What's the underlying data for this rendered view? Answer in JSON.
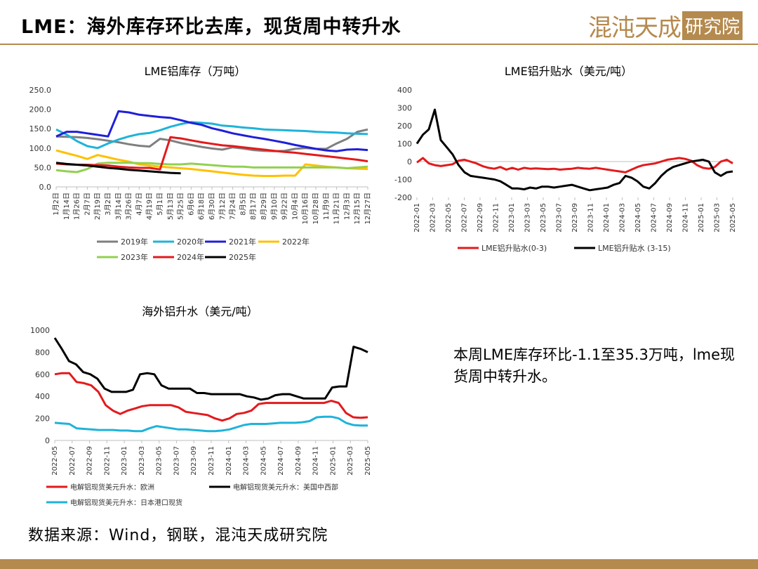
{
  "page": {
    "title": "LME：海外库存环比去库，现货周中转升水",
    "logo_main": "混沌天成",
    "logo_sub": "研究院",
    "note": "本周LME库存环比-1.1至35.3万吨，lme现货周中转升水。",
    "source": "数据来源：Wind，钢联，混沌天成研究院",
    "colors": {
      "gold": "#b58a4e"
    }
  },
  "chart_data": [
    {
      "type": "line",
      "title": "LME铝库存（万吨）",
      "ylim": [
        0,
        250
      ],
      "yticks": [
        "0.0",
        "50.0",
        "100.0",
        "150.0",
        "200.0",
        "250.0"
      ],
      "categories": [
        "1月2日",
        "1月14日",
        "1月26日",
        "2月7日",
        "2月19日",
        "3月2日",
        "3月14日",
        "3月26日",
        "4月7日",
        "4月19日",
        "5月1日",
        "5月13日",
        "5月25日",
        "6月6日",
        "6月18日",
        "6月30日",
        "7月12日",
        "7月24日",
        "8月5日",
        "8月17日",
        "8月29日",
        "9月10日",
        "9月22日",
        "10月4日",
        "10月16日",
        "10月28日",
        "11月9日",
        "11月21日",
        "12月3日",
        "12月15日",
        "12月27日"
      ],
      "legend_position": "bottom",
      "series": [
        {
          "name": "2019年",
          "color": "#7f7f7f",
          "values": [
            130,
            129,
            128,
            126,
            123,
            119,
            115,
            110,
            106,
            104,
            124,
            120,
            113,
            108,
            103,
            99,
            96,
            102,
            99,
            95,
            93,
            92,
            93,
            98,
            100,
            98,
            98,
            112,
            124,
            142,
            148
          ]
        },
        {
          "name": "2020年",
          "color": "#1fb3d9",
          "values": [
            148,
            135,
            118,
            105,
            100,
            112,
            122,
            130,
            136,
            139,
            146,
            155,
            162,
            167,
            165,
            163,
            158,
            156,
            153,
            151,
            148,
            147,
            146,
            145,
            144,
            142,
            141,
            140,
            138,
            137,
            136
          ]
        },
        {
          "name": "2021年",
          "color": "#1f1fd9",
          "values": [
            130,
            142,
            142,
            138,
            134,
            130,
            195,
            192,
            186,
            183,
            180,
            178,
            172,
            165,
            160,
            151,
            145,
            138,
            133,
            128,
            124,
            119,
            114,
            108,
            103,
            98,
            94,
            92,
            96,
            97,
            95
          ]
        },
        {
          "name": "2022年",
          "color": "#ffc000",
          "values": [
            94,
            87,
            80,
            72,
            82,
            76,
            70,
            65,
            58,
            55,
            52,
            50,
            48,
            46,
            43,
            40,
            37,
            34,
            31,
            29,
            28,
            28,
            29,
            29,
            58,
            55,
            52,
            50,
            48,
            47,
            46
          ]
        },
        {
          "name": "2023年",
          "color": "#92d050",
          "values": [
            43,
            40,
            38,
            46,
            60,
            62,
            62,
            62,
            61,
            61,
            59,
            58,
            58,
            60,
            58,
            56,
            54,
            52,
            52,
            50,
            50,
            50,
            50,
            50,
            50,
            50,
            50,
            50,
            48,
            50,
            52
          ]
        },
        {
          "name": "2024年",
          "color": "#e31a1c",
          "values": [
            60,
            58,
            57,
            57,
            56,
            55,
            52,
            50,
            49,
            49,
            45,
            128,
            125,
            120,
            115,
            111,
            107,
            105,
            102,
            99,
            96,
            93,
            90,
            88,
            85,
            82,
            79,
            76,
            73,
            70,
            66
          ]
        },
        {
          "name": "2025年",
          "color": "#000000",
          "values": [
            62,
            59,
            57,
            55,
            52,
            49,
            47,
            44,
            42,
            40,
            38,
            36,
            35,
            null,
            null,
            null,
            null,
            null,
            null,
            null,
            null,
            null,
            null,
            null,
            null,
            null,
            null,
            null,
            null,
            null,
            null
          ]
        }
      ]
    },
    {
      "type": "line",
      "title": "LME铝升贴水（美元/吨）",
      "ylim": [
        -200,
        400
      ],
      "yticks": [
        "-200",
        "-100",
        "0",
        "100",
        "200",
        "300",
        "400"
      ],
      "x_labels": [
        "2022-01",
        "2022-03",
        "2022-05",
        "2022-07",
        "2022-09",
        "2022-11",
        "2023-01",
        "2023-03",
        "2023-05",
        "2023-07",
        "2023-09",
        "2023-11",
        "2024-01",
        "2024-03",
        "2024-05",
        "2024-07",
        "2024-09",
        "2024-11",
        "2025-01",
        "2025-03",
        "2025-05"
      ],
      "legend_position": "bottom",
      "series": [
        {
          "name": "LME铝升贴水(0-3)",
          "color": "#e31a1c",
          "values": [
            -5,
            20,
            -10,
            -20,
            -25,
            -20,
            -15,
            5,
            10,
            0,
            -10,
            -25,
            -35,
            -40,
            -30,
            -45,
            -35,
            -45,
            -35,
            -40,
            -38,
            -40,
            -42,
            -40,
            -45,
            -42,
            -40,
            -35,
            -38,
            -40,
            -35,
            -40,
            -45,
            -50,
            -55,
            -60,
            -45,
            -30,
            -20,
            -15,
            -10,
            0,
            10,
            15,
            20,
            15,
            5,
            -20,
            -35,
            -40,
            -30,
            0,
            10,
            -10
          ]
        },
        {
          "name": "LME铝升贴水 (3-15)",
          "color": "#000000",
          "values": [
            100,
            150,
            180,
            290,
            120,
            80,
            40,
            -20,
            -60,
            -80,
            -85,
            -90,
            -95,
            -100,
            -110,
            -130,
            -150,
            -150,
            -155,
            -145,
            -150,
            -140,
            -140,
            -145,
            -140,
            -135,
            -130,
            -140,
            -150,
            -160,
            -155,
            -150,
            -145,
            -130,
            -120,
            -80,
            -90,
            -110,
            -140,
            -150,
            -120,
            -80,
            -50,
            -30,
            -20,
            -10,
            0,
            5,
            10,
            0,
            -60,
            -80,
            -60,
            -55
          ]
        }
      ]
    },
    {
      "type": "line",
      "title": "海外铝升水（美元/吨）",
      "ylim": [
        0,
        1000
      ],
      "yticks": [
        "0",
        "200",
        "400",
        "600",
        "800",
        "1000"
      ],
      "x_labels": [
        "2022-05",
        "2022-07",
        "2022-09",
        "2022-11",
        "2023-01",
        "2023-03",
        "2023-05",
        "2023-07",
        "2023-09",
        "2023-11",
        "2024-01",
        "2024-03",
        "2024-05",
        "2024-07",
        "2024-09",
        "2024-11",
        "2025-01",
        "2025-03",
        "2025-05"
      ],
      "legend_position": "bottom",
      "series": [
        {
          "name": "电解铝现货美元升水：欧洲",
          "color": "#e31a1c",
          "values": [
            600,
            610,
            610,
            530,
            520,
            500,
            440,
            320,
            270,
            240,
            270,
            290,
            310,
            320,
            320,
            320,
            320,
            300,
            260,
            250,
            240,
            230,
            200,
            180,
            200,
            240,
            250,
            270,
            330,
            340,
            340,
            340,
            340,
            340,
            340,
            340,
            340,
            340,
            360,
            340,
            250,
            210,
            205,
            210
          ]
        },
        {
          "name": "电解铝现货美元升水：美国中西部",
          "color": "#000000",
          "values": [
            930,
            830,
            720,
            690,
            620,
            600,
            560,
            470,
            440,
            440,
            440,
            460,
            600,
            610,
            600,
            500,
            470,
            470,
            470,
            470,
            430,
            430,
            420,
            420,
            420,
            420,
            420,
            400,
            390,
            370,
            380,
            410,
            420,
            420,
            400,
            380,
            380,
            380,
            380,
            480,
            490,
            490,
            850,
            830,
            800
          ]
        },
        {
          "name": "电解铝现货美元升水：日本港口现货",
          "color": "#1fb3d9",
          "values": [
            160,
            155,
            150,
            110,
            105,
            100,
            95,
            95,
            95,
            90,
            90,
            85,
            85,
            110,
            130,
            120,
            110,
            100,
            100,
            95,
            90,
            85,
            85,
            90,
            100,
            120,
            140,
            150,
            150,
            150,
            155,
            160,
            160,
            160,
            165,
            175,
            210,
            215,
            215,
            200,
            160,
            140,
            135,
            135
          ]
        }
      ]
    }
  ]
}
